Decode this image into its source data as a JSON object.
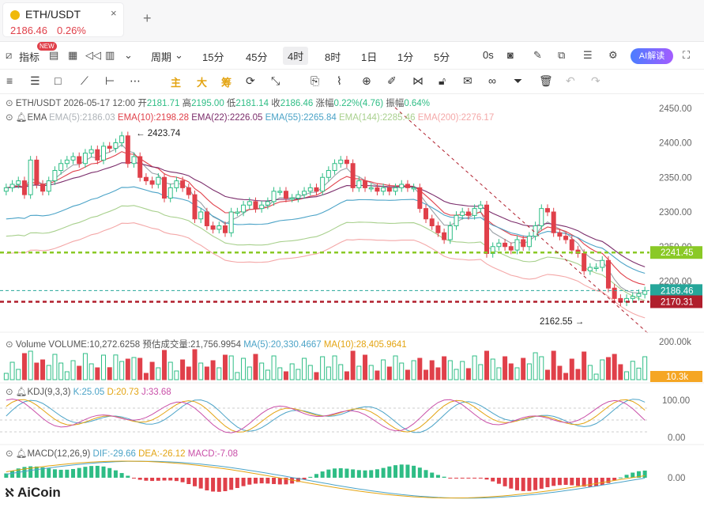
{
  "tab": {
    "symbol": "ETH/USDT",
    "close": "×",
    "price": "2186.46",
    "change": "0.26%",
    "add": "+"
  },
  "toolbar": {
    "indicators": "指标",
    "new_badge": "NEW",
    "period": "周期",
    "intervals": [
      "15分",
      "45分",
      "4时",
      "8时",
      "1日",
      "1分",
      "5分",
      "0s"
    ],
    "active_interval": "4时",
    "ai_label": "AI解读"
  },
  "drawtools": {
    "main": "主",
    "big": "大",
    "chip": "筹"
  },
  "ohlc": {
    "symbol": "ETH/USDT",
    "time": "2026-05-17 12:00",
    "open_label": "开",
    "open": "2181.71",
    "high_label": "高",
    "high": "2195.00",
    "low_label": "低",
    "low": "2181.14",
    "close_label": "收",
    "close": "2186.46",
    "amp_label": "涨幅",
    "amp": "0.22%(4.76)",
    "swing_label": "振幅",
    "swing": "0.64%"
  },
  "ema": {
    "label": "EMA",
    "e5": "EMA(5):2186.03",
    "e10": "EMA(10):2198.28",
    "e22": "EMA(22):2226.05",
    "e55": "EMA(55):2265.84",
    "e144": "EMA(144):2285.46",
    "e200": "EMA(200):2276.17"
  },
  "volume": {
    "label": "Volume",
    "value": "VOLUME:10,272.6258",
    "est": "预估成交量:21,756.9954",
    "ma5": "MA(5):20,330.4667",
    "ma10": "MA(10):28,405.9641"
  },
  "kdj": {
    "label": "KDJ(9,3,3)",
    "k": "K:25.05",
    "d": "D:20.73",
    "j": "J:33.68"
  },
  "macd": {
    "label": "MACD(12,26,9)",
    "dif": "DIF:-29.66",
    "dea": "DEA:-26.12",
    "macd": "MACD:-7.08"
  },
  "watermark": "AiCoin",
  "colors": {
    "up": "#2ebd85",
    "down": "#e0404a",
    "ema5": "#9aa0a6",
    "ema10": "#e0404a",
    "ema22": "#7b2d6b",
    "ema55": "#4ba3c7",
    "ema144": "#a8d08d",
    "ema200": "#f4a8a8",
    "price_tag": "#26a69a",
    "lime": "#8ac926"
  },
  "chart_data": {
    "type": "candlestick",
    "title": "ETH/USDT",
    "price_axis": [
      "2450.00",
      "2400.00",
      "2350.00",
      "2300.00",
      "2250.00",
      "2200.00"
    ],
    "price_range": [
      2140,
      2460
    ],
    "tags": {
      "current": "2186.46",
      "hline_high": "2241.45",
      "hline_low": "2170.31"
    },
    "annotations": {
      "max": "2423.74",
      "min": "2162.55"
    },
    "vol_axis": [
      "200.00k"
    ],
    "vol_tag": "10.3k",
    "kdj_axis": [
      "100.00",
      "0.00"
    ],
    "macd_axis": [
      "0.00"
    ],
    "closes": [
      2335,
      2340,
      2345,
      2325,
      2375,
      2340,
      2330,
      2345,
      2360,
      2370,
      2375,
      2380,
      2370,
      2385,
      2390,
      2375,
      2395,
      2392,
      2400,
      2410,
      2370,
      2380,
      2350,
      2345,
      2340,
      2350,
      2320,
      2335,
      2345,
      2335,
      2325,
      2290,
      2300,
      2280,
      2275,
      2280,
      2270,
      2300,
      2300,
      2310,
      2315,
      2305,
      2310,
      2315,
      2330,
      2330,
      2320,
      2320,
      2325,
      2330,
      2335,
      2330,
      2350,
      2360,
      2370,
      2375,
      2370,
      2335,
      2345,
      2335,
      2335,
      2330,
      2335,
      2330,
      2335,
      2340,
      2335,
      2335,
      2305,
      2290,
      2280,
      2270,
      2260,
      2280,
      2295,
      2300,
      2295,
      2305,
      2310,
      2240,
      2250,
      2255,
      2250,
      2245,
      2260,
      2250,
      2265,
      2280,
      2305,
      2300,
      2270,
      2265,
      2260,
      2245,
      2240,
      2215,
      2220,
      2220,
      2230,
      2190,
      2175,
      2170,
      2175,
      2178,
      2182,
      2186
    ],
    "opens": [
      2330,
      2335,
      2340,
      2345,
      2325,
      2375,
      2340,
      2330,
      2345,
      2360,
      2370,
      2375,
      2380,
      2370,
      2385,
      2390,
      2375,
      2395,
      2392,
      2400,
      2410,
      2370,
      2380,
      2350,
      2345,
      2340,
      2350,
      2320,
      2335,
      2345,
      2335,
      2325,
      2290,
      2300,
      2280,
      2275,
      2280,
      2270,
      2300,
      2300,
      2310,
      2315,
      2305,
      2310,
      2315,
      2330,
      2330,
      2320,
      2320,
      2325,
      2330,
      2335,
      2330,
      2350,
      2360,
      2370,
      2375,
      2370,
      2335,
      2345,
      2335,
      2335,
      2330,
      2335,
      2330,
      2335,
      2340,
      2335,
      2335,
      2305,
      2290,
      2280,
      2270,
      2260,
      2280,
      2295,
      2300,
      2295,
      2305,
      2310,
      2240,
      2250,
      2255,
      2250,
      2245,
      2260,
      2250,
      2265,
      2280,
      2305,
      2300,
      2270,
      2265,
      2260,
      2245,
      2240,
      2215,
      2220,
      2220,
      2230,
      2190,
      2175,
      2170,
      2175,
      2178,
      2181
    ]
  }
}
